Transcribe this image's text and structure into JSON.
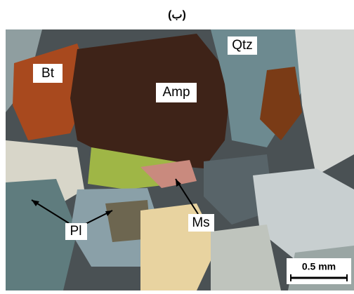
{
  "title": "(ب)",
  "labels": [
    "Bt",
    "Amp",
    "Qtz",
    "Pl",
    "Ms"
  ],
  "scale_bar": "0.5 mm"
}
